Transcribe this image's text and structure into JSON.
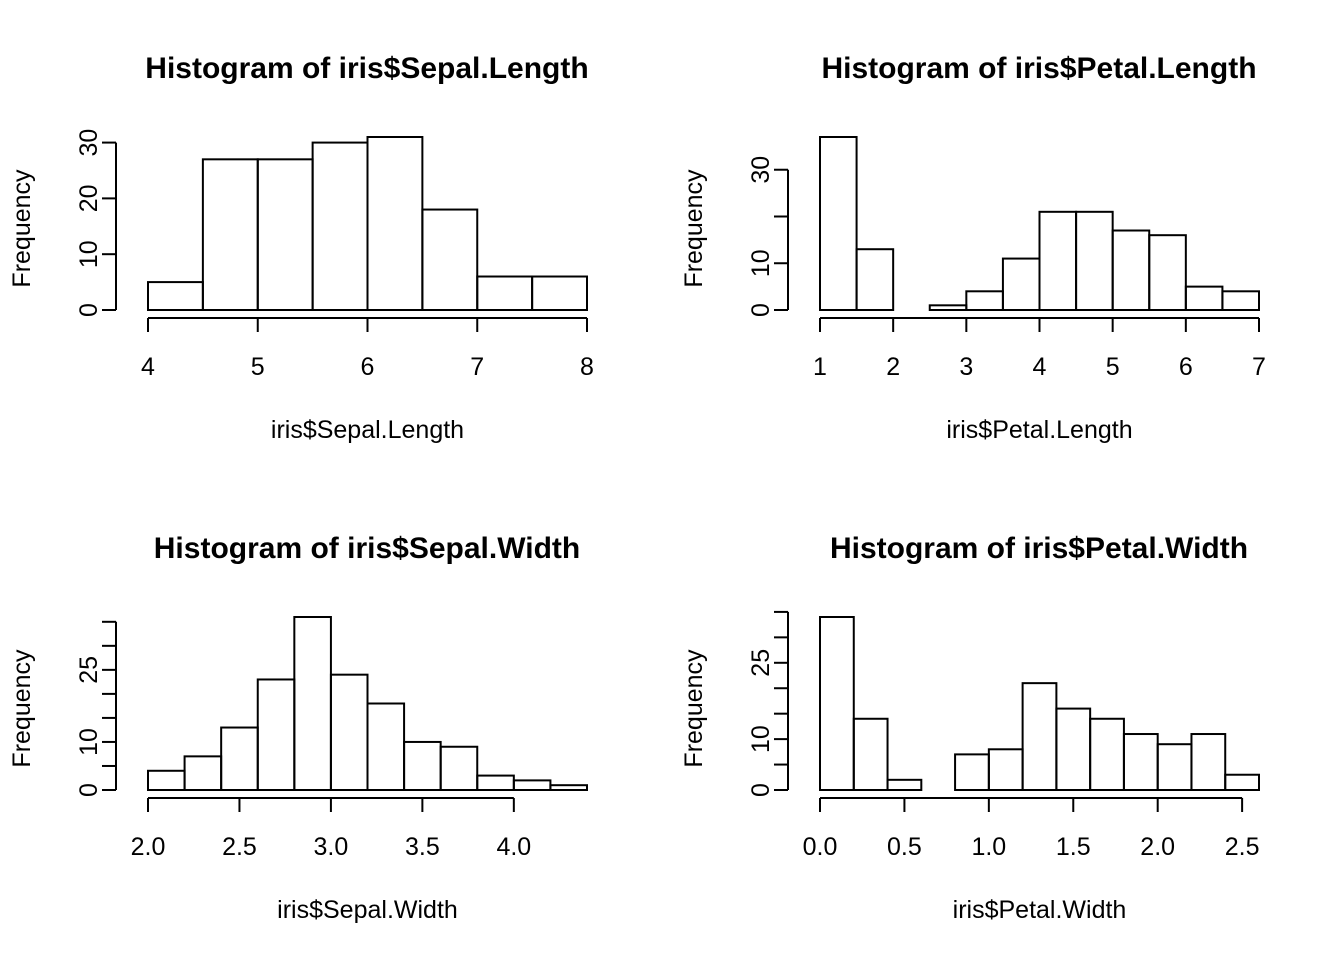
{
  "chart_data": [
    {
      "type": "bar",
      "title": "Histogram of iris$Sepal.Length",
      "xlabel": "iris$Sepal.Length",
      "ylabel": "Frequency",
      "breaks": [
        4.0,
        4.5,
        5.0,
        5.5,
        6.0,
        6.5,
        7.0,
        7.5,
        8.0
      ],
      "values": [
        5,
        27,
        27,
        30,
        31,
        18,
        6,
        6
      ],
      "xlim": [
        4,
        8
      ],
      "xticks": [
        4,
        5,
        6,
        7,
        8
      ],
      "xtick_labels": [
        "4",
        "5",
        "6",
        "7",
        "8"
      ],
      "ylim": [
        0,
        31
      ],
      "yticks": [
        0,
        10,
        20,
        30
      ],
      "ytick_labels": [
        "0",
        "10",
        "20",
        "30"
      ],
      "grid": false
    },
    {
      "type": "bar",
      "title": "Histogram of iris$Petal.Length",
      "xlabel": "iris$Petal.Length",
      "ylabel": "Frequency",
      "breaks": [
        1.0,
        1.5,
        2.0,
        2.5,
        3.0,
        3.5,
        4.0,
        4.5,
        5.0,
        5.5,
        6.0,
        6.5,
        7.0
      ],
      "values": [
        37,
        13,
        0,
        1,
        4,
        11,
        21,
        21,
        17,
        16,
        5,
        4
      ],
      "xlim": [
        1,
        7
      ],
      "xticks": [
        1,
        2,
        3,
        4,
        5,
        6,
        7
      ],
      "xtick_labels": [
        "1",
        "2",
        "3",
        "4",
        "5",
        "6",
        "7"
      ],
      "ylim": [
        0,
        37
      ],
      "yticks": [
        0,
        10,
        20,
        30
      ],
      "ytick_labels": [
        "0",
        "10",
        "",
        "30"
      ],
      "grid": false
    },
    {
      "type": "bar",
      "title": "Histogram of iris$Sepal.Width",
      "xlabel": "iris$Sepal.Width",
      "ylabel": "Frequency",
      "breaks": [
        2.0,
        2.2,
        2.4,
        2.6,
        2.8,
        3.0,
        3.2,
        3.4,
        3.6,
        3.8,
        4.0,
        4.2,
        4.4
      ],
      "values": [
        4,
        7,
        13,
        23,
        36,
        24,
        18,
        10,
        9,
        3,
        2,
        1
      ],
      "xlim": [
        2.0,
        4.4
      ],
      "xticks": [
        2.0,
        2.5,
        3.0,
        3.5,
        4.0
      ],
      "xtick_labels": [
        "2.0",
        "2.5",
        "3.0",
        "3.5",
        "4.0"
      ],
      "ylim": [
        0,
        36
      ],
      "yticks": [
        0,
        5,
        10,
        15,
        20,
        25,
        30,
        35
      ],
      "ytick_labels": [
        "0",
        "",
        "10",
        "",
        "",
        "25",
        "",
        ""
      ],
      "grid": false
    },
    {
      "type": "bar",
      "title": "Histogram of iris$Petal.Width",
      "xlabel": "iris$Petal.Width",
      "ylabel": "Frequency",
      "breaks": [
        0.0,
        0.2,
        0.4,
        0.6,
        0.8,
        1.0,
        1.2,
        1.4,
        1.6,
        1.8,
        2.0,
        2.2,
        2.4,
        2.6
      ],
      "values": [
        34,
        14,
        2,
        0,
        7,
        8,
        21,
        16,
        14,
        11,
        9,
        11,
        3
      ],
      "xlim": [
        0,
        2.6
      ],
      "xticks": [
        0.0,
        0.5,
        1.0,
        1.5,
        2.0,
        2.5
      ],
      "xtick_labels": [
        "0.0",
        "0.5",
        "1.0",
        "1.5",
        "2.0",
        "2.5"
      ],
      "ylim": [
        0,
        34
      ],
      "yticks": [
        0,
        5,
        10,
        15,
        20,
        25,
        30,
        35
      ],
      "ytick_labels": [
        "0",
        "",
        "10",
        "",
        "",
        "25",
        "",
        ""
      ],
      "grid": false
    }
  ]
}
